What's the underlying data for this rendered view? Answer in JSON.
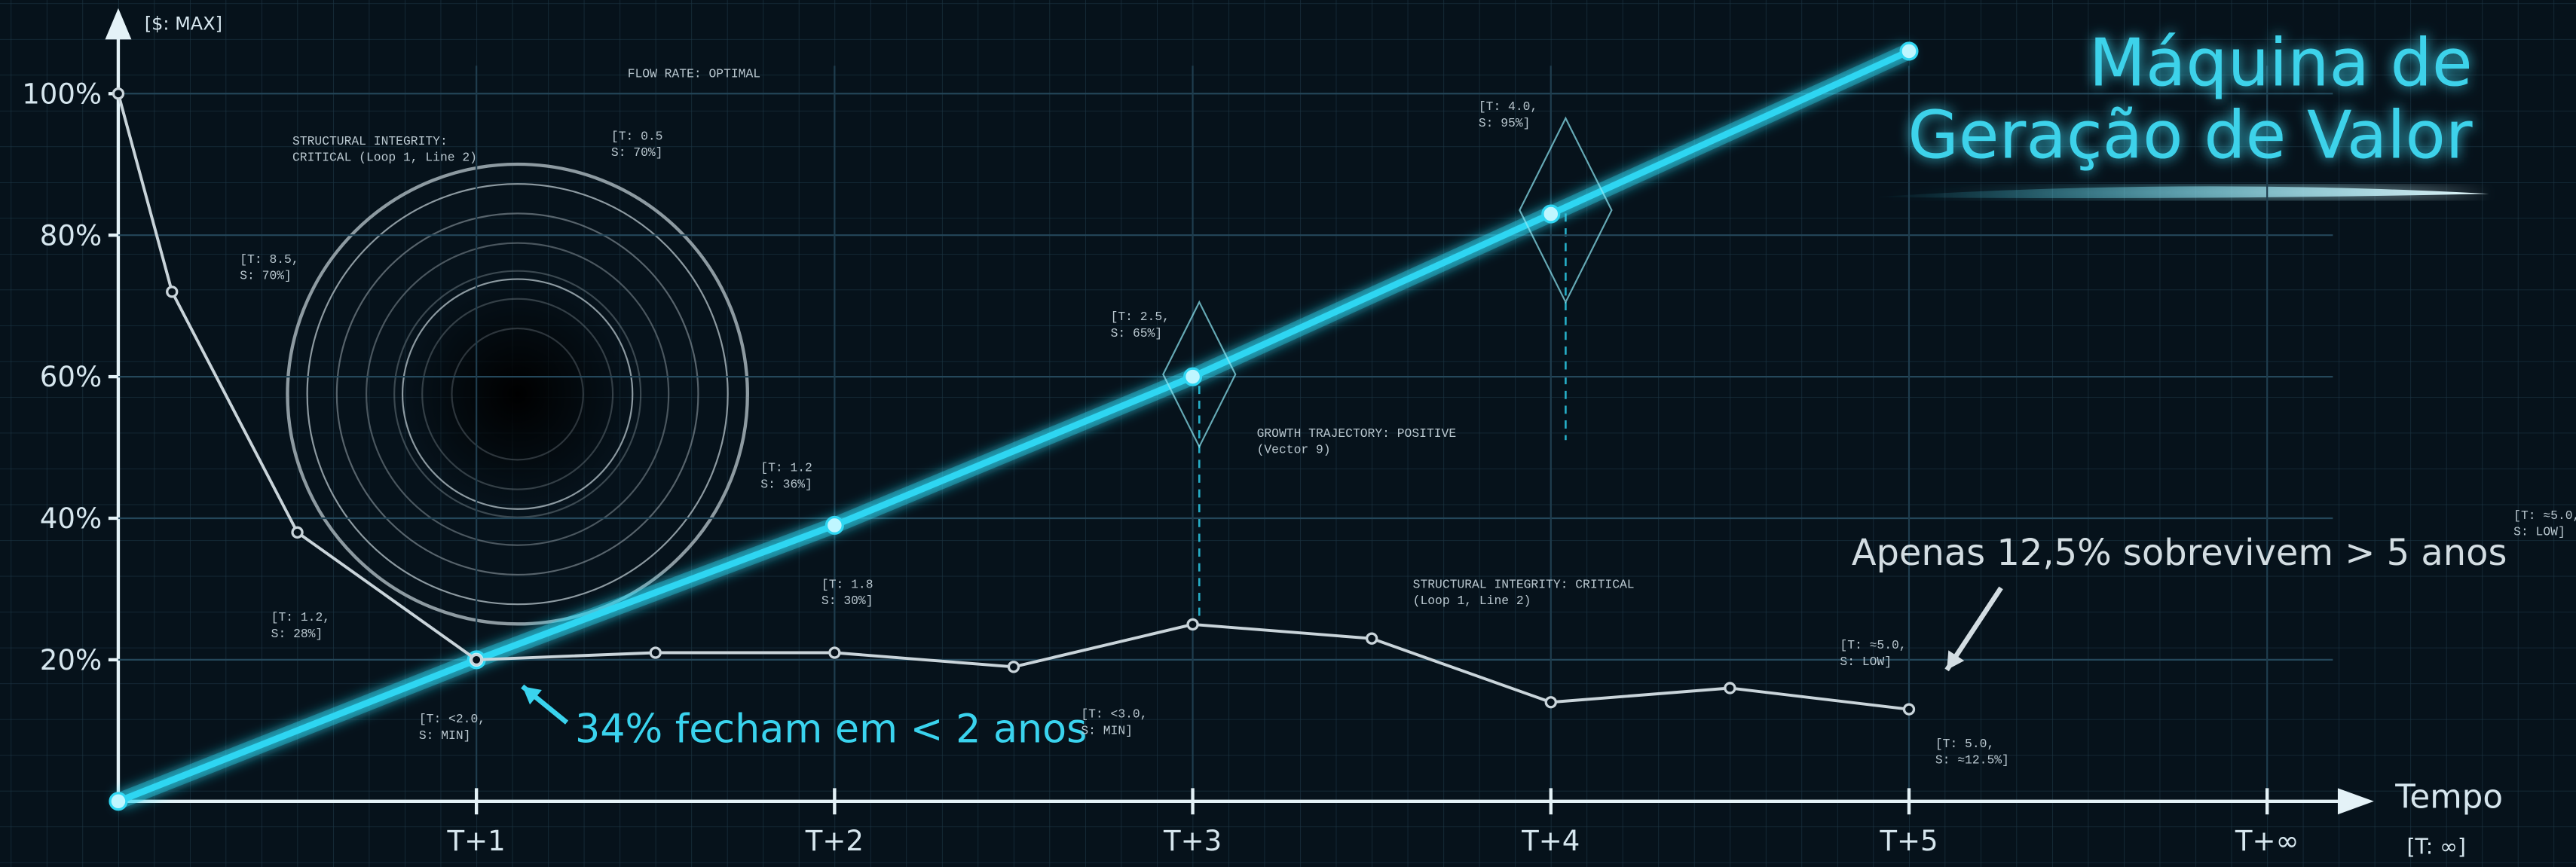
{
  "chart_data": {
    "type": "line",
    "title": [
      "Máquina de",
      "Geração de Valor"
    ],
    "y_label": "[$: MAX]",
    "x_label": "Tempo",
    "x_end_label": "[T: ∞]",
    "xlim": [
      0,
      6.2
    ],
    "xticks": [
      {
        "value": 1,
        "label": "T+1"
      },
      {
        "value": 2,
        "label": "T+2"
      },
      {
        "value": 3,
        "label": "T+3"
      },
      {
        "value": 4,
        "label": "T+4"
      },
      {
        "value": 5,
        "label": "T+5"
      },
      {
        "value": 6,
        "label": "T+∞"
      }
    ],
    "ylim": [
      0,
      113
    ],
    "yticks": [
      {
        "value": 20,
        "label": "20%"
      },
      {
        "value": 40,
        "label": "40%"
      },
      {
        "value": 60,
        "label": "60%"
      },
      {
        "value": 80,
        "label": "80%"
      },
      {
        "value": 100,
        "label": "100%"
      }
    ],
    "grid": true,
    "series": [
      {
        "color": "#2fd6f2",
        "x": [
          0,
          1,
          2,
          3,
          4,
          5
        ],
        "values": [
          0,
          20,
          39,
          60,
          83,
          106
        ]
      },
      {
        "color": "#c9d4da",
        "x": [
          0,
          0.15,
          0.5,
          1,
          1.5,
          2,
          2.5,
          3,
          3.5,
          4,
          4.5,
          5
        ],
        "values": [
          100,
          72,
          38,
          20,
          21,
          21,
          19,
          25,
          23,
          14,
          16,
          13
        ]
      }
    ],
    "callouts": [
      "34% fecham em < 2 anos",
      "Apenas 12,5% sobrevivem > 5 anos"
    ],
    "annotations": [
      [
        "FLOW RATE: OPTIMAL"
      ],
      [
        "STRUCTURAL INTEGRITY:",
        "CRITICAL (Loop 1, Line 2)"
      ],
      [
        "[T: 0.5",
        "S: 70%]"
      ],
      [
        "[T: 8.5,",
        "S: 70%]"
      ],
      [
        "[T: 1.2",
        "S: 36%]"
      ],
      [
        "[T: 1.2,",
        "S: 28%]"
      ],
      [
        "[T: 1.8",
        "S: 30%]"
      ],
      [
        "[T: <2.0,",
        "S: MIN]"
      ],
      [
        "[T: <3.0,",
        "S: MIN]"
      ],
      [
        "[T: 2.5,",
        "S: 65%]"
      ],
      [
        "GROWTH TRAJECTORY: POSITIVE",
        "(Vector 9)"
      ],
      [
        "[T: 4.0,",
        "S: 95%]"
      ],
      [
        "STRUCTURAL INTEGRITY: CRITICAL",
        "(Loop 1, Line 2)"
      ],
      [
        "[T: ≈5.0,",
        "S: LOW]"
      ],
      [
        "[T: 5.0,",
        "S: ≈12.5%]"
      ],
      [
        "[T: ≈5.0,",
        "S: LOW]"
      ]
    ]
  }
}
